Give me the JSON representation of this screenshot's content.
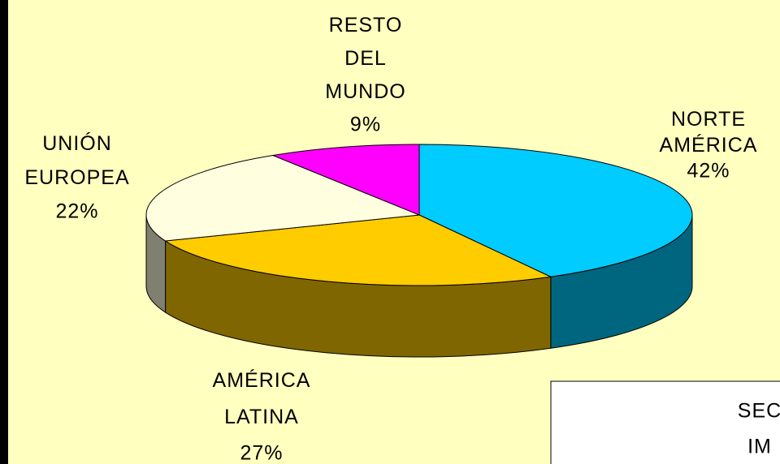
{
  "chart_data": {
    "type": "pie3d",
    "categories": [
      "NORTE AMÉRICA",
      "AMÉRICA LATINA",
      "UNIÓN EUROPEA",
      "RESTO DEL MUNDO"
    ],
    "values": [
      42,
      27,
      22,
      9
    ],
    "value_labels": [
      "42%",
      "27%",
      "22%",
      "9%"
    ],
    "colors": [
      "#00CCFF",
      "#FFCC00",
      "#FFFFE0",
      "#FF00FF"
    ],
    "annotation": [
      "SEC",
      "IM"
    ]
  }
}
